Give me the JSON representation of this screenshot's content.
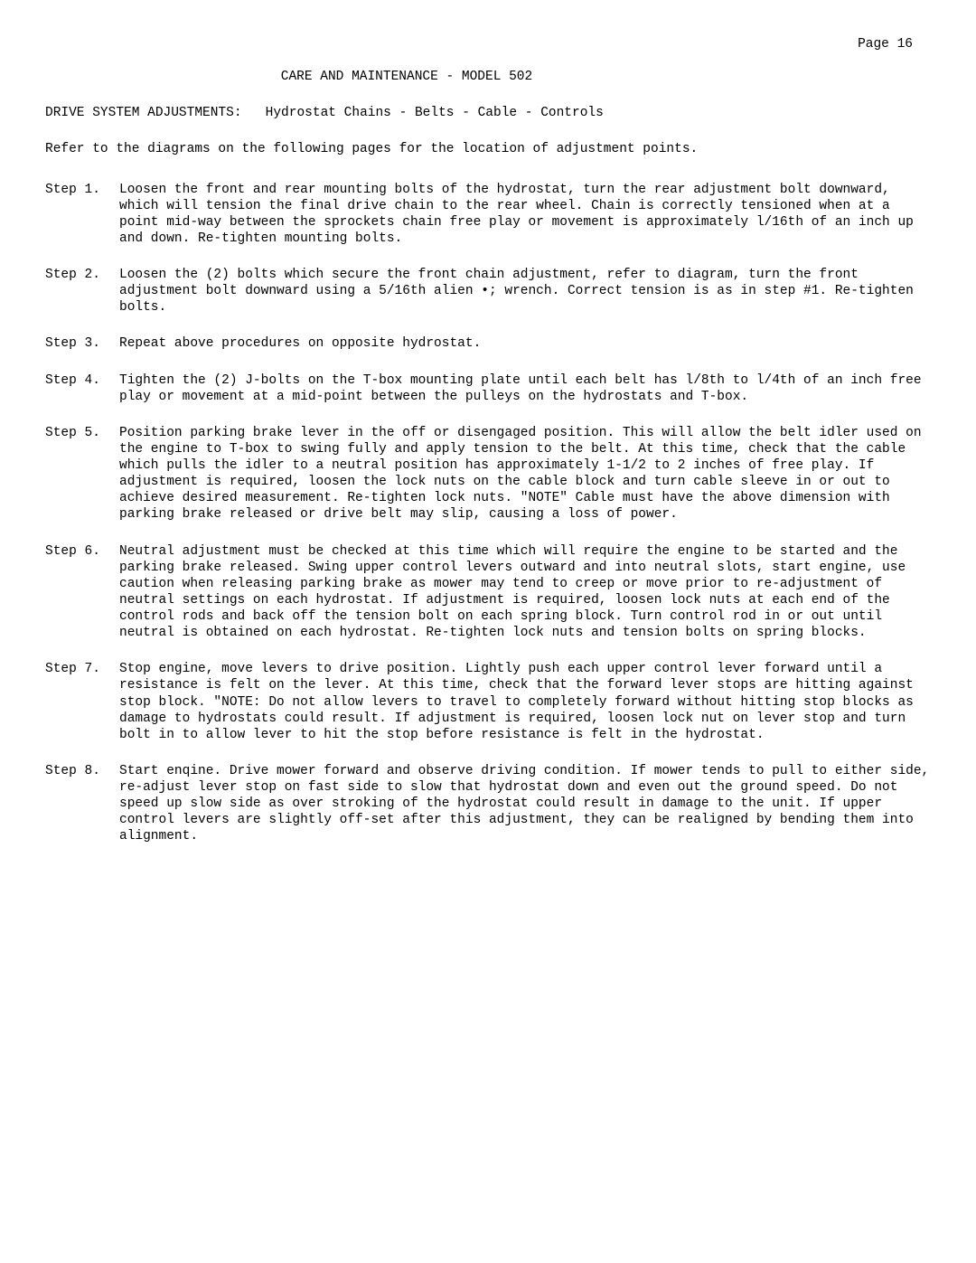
{
  "pageNumber": "Page 16",
  "title": "CARE AND MAINTENANCE - MODEL 502",
  "subtitleLabel": "DRIVE SYSTEM ADJUSTMENTS:",
  "subtitleText": "Hydrostat Chains - Belts - Cable - Controls",
  "intro": "Refer to the diagrams on the following pages for the location of adjustment points.",
  "steps": [
    {
      "label": "Step 1.",
      "body": "Loosen the front and rear mounting bolts of the hydrostat, turn the rear adjustment bolt downward, which will tension the final drive chain to the rear wheel. Chain is correctly tensioned when at a point mid-way between the sprockets chain free play or movement is approximately l/16th of an inch up and down. Re-tighten mounting bolts."
    },
    {
      "label": "Step 2.",
      "body": "Loosen the (2) bolts which secure the front chain adjustment, refer to diagram, turn the front adjustment bolt downward using a 5/16th alien •; wrench. Correct tension is as in step #1. Re-tighten bolts."
    },
    {
      "label": "Step 3.",
      "body": "Repeat above procedures on opposite hydrostat."
    },
    {
      "label": "Step 4.",
      "body": "Tighten the (2) J-bolts on the T-box mounting plate until each belt has l/8th to l/4th of an inch free play or movement at a mid-point between the pulleys on the hydrostats and T-box."
    },
    {
      "label": "Step 5.",
      "body": "Position parking brake lever in the off or disengaged position. This will allow the belt idler used on the engine to T-box to swing fully and apply tension to the belt. At this time, check that the cable which pulls the idler to a neutral position has approximately 1-1/2 to 2 inches of free play. If adjustment is required, loosen the lock nuts on the cable block and turn cable sleeve in or out to achieve desired measurement. Re-tighten lock nuts. \"NOTE\" Cable must have the above dimension with parking brake released or drive belt may slip, causing a loss of power."
    },
    {
      "label": "Step 6.",
      "body": "Neutral adjustment must be checked at this time which will require the engine to be started and the parking brake released. Swing upper control levers outward and into neutral slots, start engine, use caution when releasing parking brake as mower may tend to creep or move prior to re-adjustment of neutral settings on each hydrostat. If adjustment is required, loosen lock nuts at each end of the control rods and back off the tension bolt on each spring block. Turn control rod in or out until neutral is obtained on each hydrostat. Re-tighten lock nuts and tension bolts on spring blocks."
    },
    {
      "label": "Step 7.",
      "body": "Stop engine, move levers to drive position. Lightly push each upper control lever forward until a resistance is felt on the lever. At this time, check that the forward lever stops are hitting against stop block. \"NOTE: Do not allow levers to travel to completely forward without hitting stop blocks as damage to hydrostats could result. If adjustment is required, loosen lock nut on lever stop and turn bolt in to allow lever to hit the stop before resistance is felt in the hydrostat."
    },
    {
      "label": "Step 8.",
      "body": "Start enqine. Drive mower forward and observe driving condition. If mower tends to pull to either side, re-adjust lever stop on fast side to slow that hydrostat down and even out the ground speed. Do not speed up slow side as over stroking of the hydrostat could result in damage to the unit. If upper control levers are slightly off-set after this adjustment, they can be realigned by bending them into alignment."
    }
  ]
}
